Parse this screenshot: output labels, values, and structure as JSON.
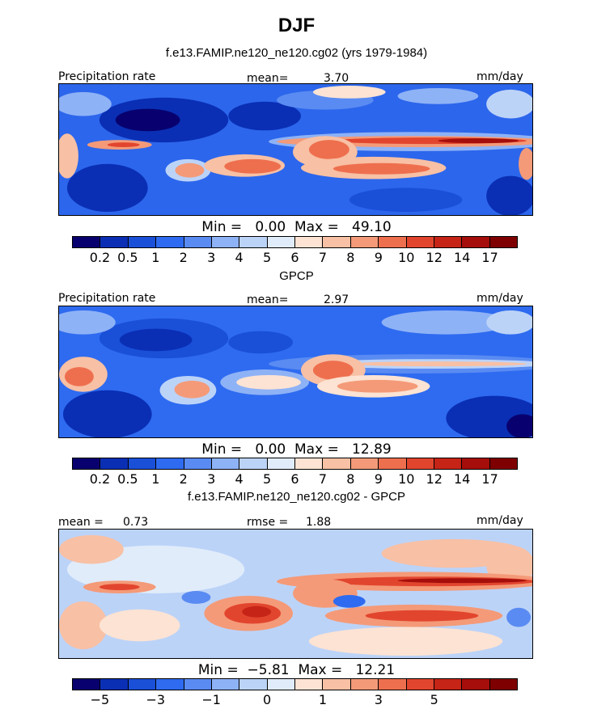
{
  "main_title": "DJF",
  "palette": [
    "#08006e",
    "#0a2fb4",
    "#1a4fd8",
    "#2e6bf0",
    "#5a8bf2",
    "#8eb2f6",
    "#bcd3f8",
    "#e0ecfa",
    "#fce3d3",
    "#f8c0a4",
    "#f49a78",
    "#ee6f4e",
    "#e2452e",
    "#c62416",
    "#a50e0a",
    "#7e0000"
  ],
  "panels": [
    {
      "subtitle": "f.e13.FAMIP.ne120_ne120.cg02 (yrs 1979-1984)",
      "left_label": "Precipitation rate",
      "mid_label": "mean=",
      "mid_value": "3.70",
      "right_label": "mm/day",
      "min_label": "Min =",
      "min_value": "0.00",
      "max_label": "Max =",
      "max_value": "49.10",
      "colorbar_ticks": [
        "0.2",
        "0.5",
        "1",
        "2",
        "3",
        "4",
        "5",
        "6",
        "7",
        "8",
        "9",
        "10",
        "12",
        "14",
        "17"
      ]
    },
    {
      "subtitle": "GPCP",
      "left_label": "Precipitation rate",
      "mid_label": "mean=",
      "mid_value": "2.97",
      "right_label": "mm/day",
      "min_label": "Min =",
      "min_value": "0.00",
      "max_label": "Max =",
      "max_value": "12.89",
      "colorbar_ticks": [
        "0.2",
        "0.5",
        "1",
        "2",
        "3",
        "4",
        "5",
        "6",
        "7",
        "8",
        "9",
        "10",
        "12",
        "14",
        "17"
      ]
    },
    {
      "subtitle": "f.e13.FAMIP.ne120_ne120.cg02 - GPCP",
      "left_label": "mean =",
      "left_value": "0.73",
      "mid_label": "rmse =",
      "mid_value": "1.88",
      "right_label": "mm/day",
      "min_label": "Min =",
      "min_value": "−5.81",
      "max_label": "Max =",
      "max_value": "12.21",
      "colorbar_ticks": [
        "−5",
        "−3",
        "−1",
        "0",
        "1",
        "3",
        "5"
      ]
    }
  ],
  "chart_data": {
    "type": "heatmap",
    "title": "DJF",
    "series": [
      {
        "name": "f.e13.FAMIP.ne120_ne120.cg02 (yrs 1979-1984)",
        "units": "mm/day",
        "mean": 3.7,
        "min": 0.0,
        "max": 49.1,
        "colorbar": [
          0.2,
          0.5,
          1,
          2,
          3,
          4,
          5,
          6,
          7,
          8,
          9,
          10,
          12,
          14,
          17
        ]
      },
      {
        "name": "GPCP",
        "units": "mm/day",
        "mean": 2.97,
        "min": 0.0,
        "max": 12.89,
        "colorbar": [
          0.2,
          0.5,
          1,
          2,
          3,
          4,
          5,
          6,
          7,
          8,
          9,
          10,
          12,
          14,
          17
        ]
      },
      {
        "name": "f.e13.FAMIP.ne120_ne120.cg02 - GPCP",
        "units": "mm/day",
        "mean": 0.73,
        "rmse": 1.88,
        "min": -5.81,
        "max": 12.21,
        "colorbar": [
          -5,
          -3,
          -1,
          0,
          1,
          3,
          5
        ]
      }
    ]
  }
}
